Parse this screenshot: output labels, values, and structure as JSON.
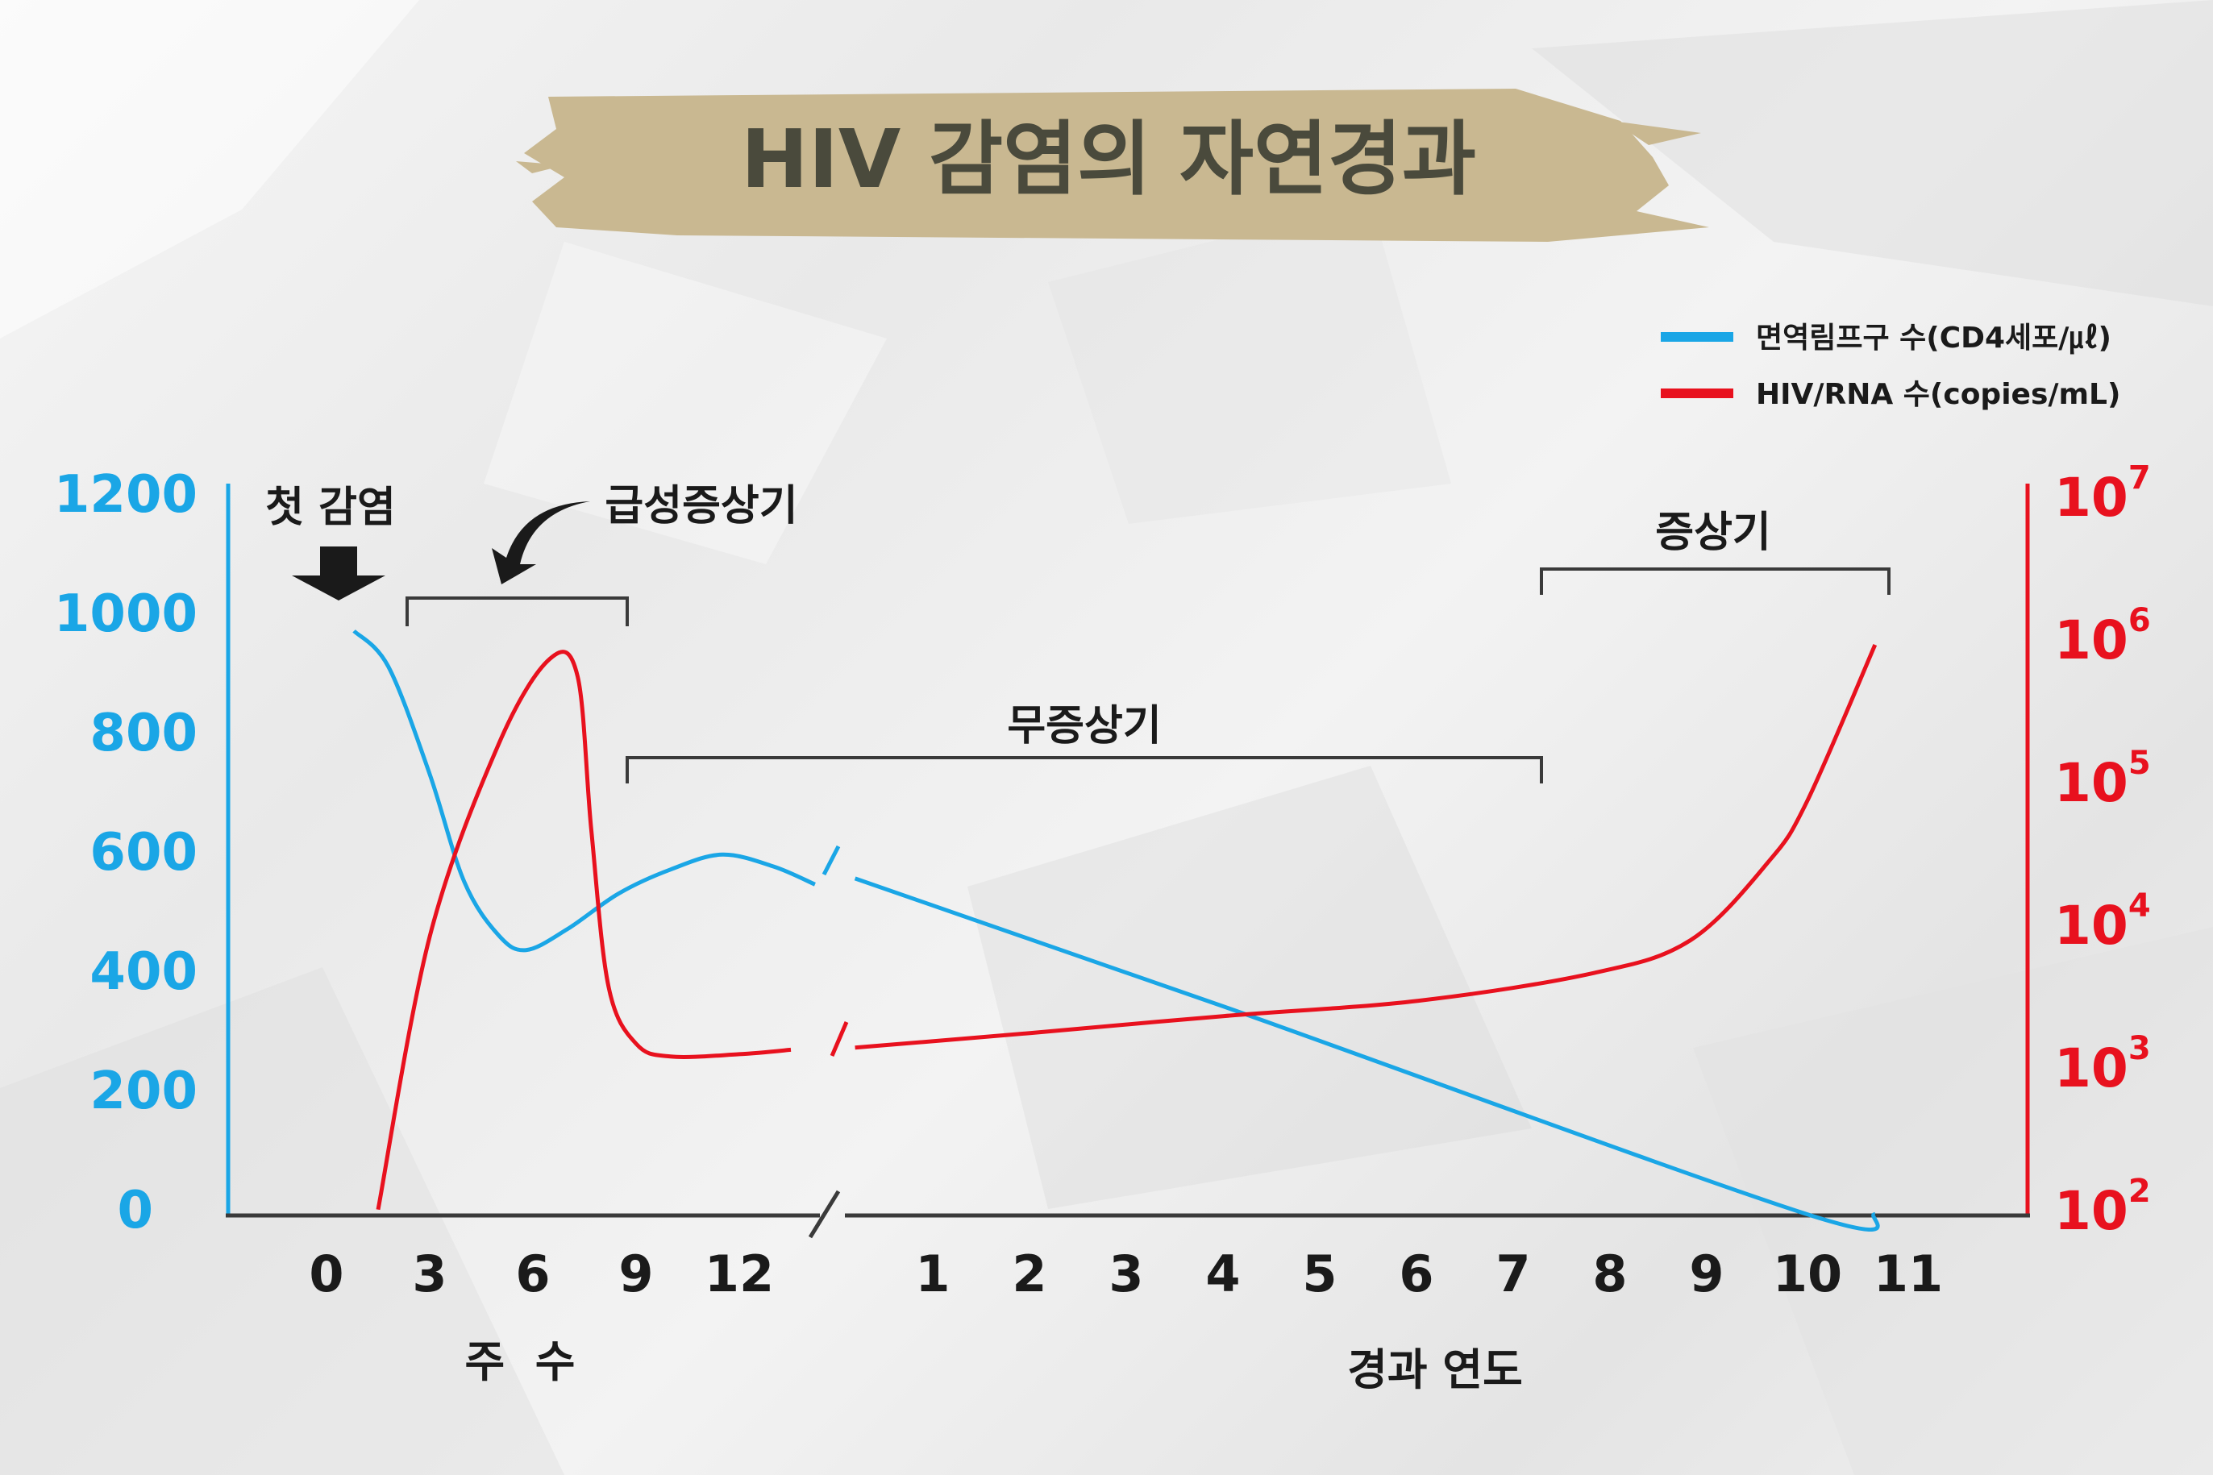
{
  "chart_data": {
    "type": "line",
    "title": "HIV 감염의 자연경과",
    "legend": [
      {
        "name": "면역림프구 수(CD4세포/㎕)",
        "color": "#1aa6e6"
      },
      {
        "name": "HIV/RNA 수(copies/mL)",
        "color": "#e8111e"
      }
    ],
    "legend_position": "top-right",
    "left_axis": {
      "ticks": [
        "1200",
        "1000",
        "800",
        "600",
        "400",
        "200",
        "0"
      ],
      "ylim": [
        0,
        1200
      ],
      "color": "#1aa6e6"
    },
    "right_axis": {
      "scale": "log",
      "ticks": [
        {
          "base": "10",
          "exp": "7"
        },
        {
          "base": "10",
          "exp": "6"
        },
        {
          "base": "10",
          "exp": "5"
        },
        {
          "base": "10",
          "exp": "4"
        },
        {
          "base": "10",
          "exp": "3"
        },
        {
          "base": "10",
          "exp": "2"
        }
      ],
      "ylim": [
        100,
        10000000
      ],
      "color": "#e8111e"
    },
    "x_weeks": {
      "ticks": [
        "0",
        "3",
        "6",
        "9",
        "12"
      ],
      "label": "주  수"
    },
    "x_years": {
      "ticks": [
        "1",
        "2",
        "3",
        "4",
        "5",
        "6",
        "7",
        "8",
        "9",
        "10",
        "11"
      ],
      "label": "경과 연도"
    },
    "series": [
      {
        "name": "면역림프구 수(CD4세포/㎕)",
        "weeks": [
          [
            0.8,
            980
          ],
          [
            1.8,
            920
          ],
          [
            3,
            740
          ],
          [
            4,
            560
          ],
          [
            5,
            470
          ],
          [
            5.8,
            445
          ],
          [
            7,
            480
          ],
          [
            8.5,
            540
          ],
          [
            10,
            580
          ],
          [
            11.5,
            605
          ],
          [
            13,
            585
          ],
          [
            14.2,
            555
          ]
        ],
        "years": [
          [
            0.2,
            565
          ],
          [
            4,
            350
          ],
          [
            10,
            2
          ],
          [
            10.7,
            2
          ]
        ]
      },
      {
        "name": "HIV/RNA 수(copies/mL)",
        "weeks": [
          [
            1.5,
            110
          ],
          [
            3,
            9000
          ],
          [
            5,
            200000
          ],
          [
            6.5,
            800000
          ],
          [
            7.3,
            600000
          ],
          [
            7.7,
            50000
          ],
          [
            8.2,
            4000
          ],
          [
            9,
            1600
          ],
          [
            10,
            1300
          ],
          [
            12,
            1350
          ],
          [
            13.5,
            1450
          ]
        ],
        "years": [
          [
            0.2,
            1500
          ],
          [
            2,
            1900
          ],
          [
            4,
            2500
          ],
          [
            6,
            3200
          ],
          [
            7.8,
            5000
          ],
          [
            8.8,
            8500
          ],
          [
            9.6,
            30000
          ],
          [
            10,
            80000
          ],
          [
            10.7,
            1000000
          ]
        ]
      }
    ],
    "annotations": {
      "first_infection": "첫 감염",
      "acute": "급성증상기",
      "asymptomatic": "무증상기",
      "symptomatic": "증상기"
    }
  }
}
